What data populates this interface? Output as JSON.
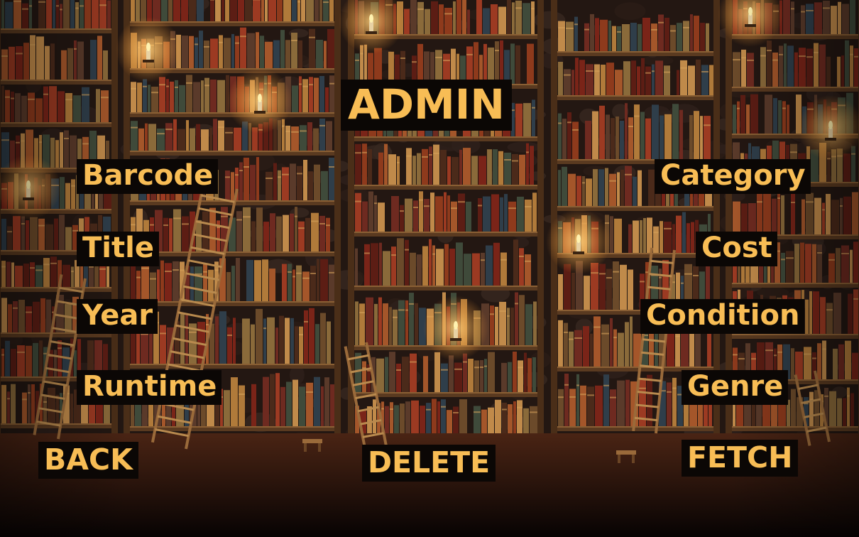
{
  "screen": {
    "title": "ADMIN",
    "left_fields": [
      "Barcode",
      "Title",
      "Year",
      "Runtime"
    ],
    "right_fields": [
      "Category",
      "Cost",
      "Condition",
      "Genre"
    ],
    "buttons": {
      "back": "BACK",
      "delete": "DELETE",
      "fetch": "FETCH"
    }
  },
  "colors": {
    "label_text": "#f8bd55",
    "label_background": "#0b0705"
  },
  "background": {
    "scene": "library bookshelves with ladders and candles"
  }
}
